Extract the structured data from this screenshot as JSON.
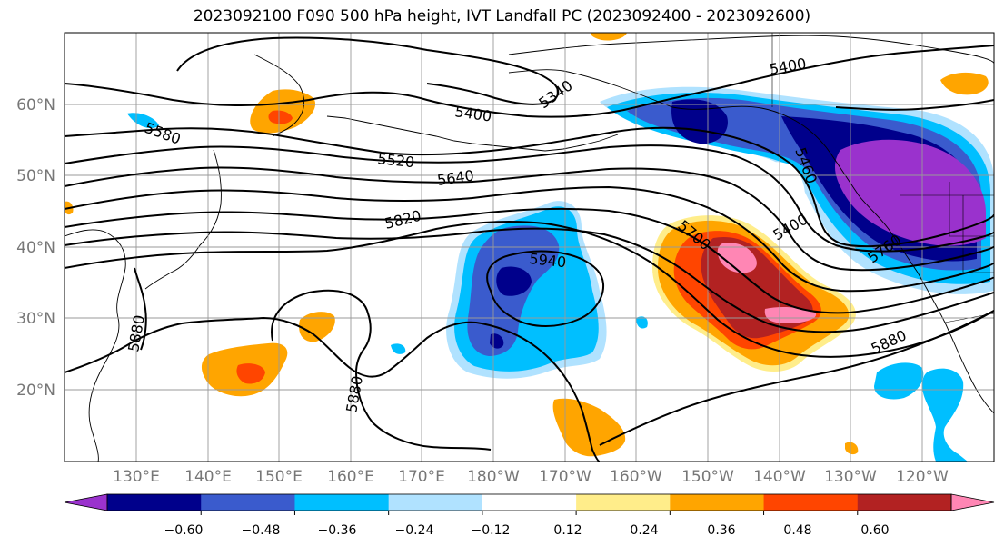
{
  "title": "2023092100 F090 500 hPa height, IVT Landfall PC (2023092400 - 2023092600)",
  "lat_labels": [
    "60°N",
    "50°N",
    "40°N",
    "30°N",
    "20°N"
  ],
  "lon_labels": [
    "130°E",
    "140°E",
    "150°E",
    "160°E",
    "170°E",
    "180°W",
    "170°W",
    "160°W",
    "150°W",
    "140°W",
    "130°W",
    "120°W"
  ],
  "contour_labels": [
    "5400",
    "5340",
    "5400",
    "5520",
    "5640",
    "5820",
    "5940",
    "5580",
    "5880",
    "5880",
    "5880",
    "5460",
    "5400",
    "5700",
    "5760"
  ],
  "colorbar": {
    "colors": [
      "#9a32cd",
      "#00008b",
      "#3a5bcd",
      "#00bfff",
      "#b0e2ff",
      "#ffffff",
      "#ffed8a",
      "#ffa500",
      "#ff4500",
      "#b22222",
      "#ff86b4"
    ],
    "ticks": [
      "−0.60",
      "−0.48",
      "−0.36",
      "−0.24",
      "−0.12",
      "0.12",
      "0.24",
      "0.36",
      "0.48",
      "0.60"
    ]
  }
}
